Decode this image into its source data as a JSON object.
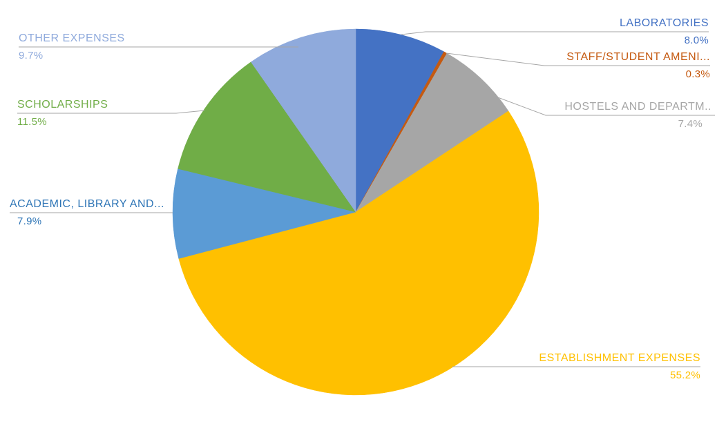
{
  "chart_data": {
    "type": "pie",
    "categories": [
      "LABORATORIES",
      "STAFF/STUDENT AMENI...",
      "HOSTELS AND DEPARTM..",
      "ESTABLISHMENT EXPENSES",
      "ACADEMIC, LIBRARY AND...",
      "SCHOLARSHIPS",
      "OTHER EXPENSES"
    ],
    "values": [
      8.0,
      0.3,
      7.4,
      55.2,
      7.9,
      11.5,
      9.7
    ],
    "pct_labels": [
      "8.0%",
      "0.3%",
      "7.4%",
      "55.2%",
      "7.9%",
      "11.5%",
      "9.7%"
    ],
    "colors": [
      "#4472C4",
      "#C55A11",
      "#A6A6A6",
      "#FFC000",
      "#5B9BD5",
      "#70AD47",
      "#8FAADC"
    ],
    "text_colors": [
      "#4472C4",
      "#C55A11",
      "#A6A6A6",
      "#FFC000",
      "#2E75B6",
      "#70AD47",
      "#8FAADC"
    ],
    "leader_line_color": "#A6A6A6",
    "background": "#FFFFFF",
    "start_angle_deg": 0,
    "direction": "clockwise",
    "legend": "none",
    "label_style": "outside-callout-with-leader-lines"
  }
}
